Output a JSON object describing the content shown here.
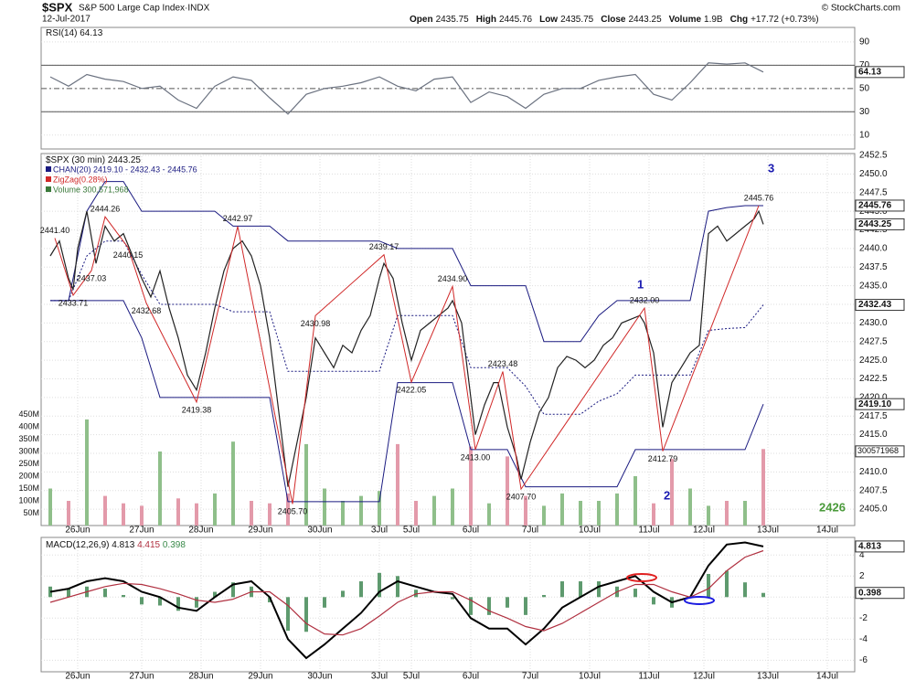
{
  "header": {
    "symbol": "$SPX",
    "name": "S&P 500 Large Cap Index·INDX",
    "date": "12-Jul-2017",
    "quote": [
      {
        "label": "Open",
        "value": "2435.75"
      },
      {
        "label": "High",
        "value": "2445.76"
      },
      {
        "label": "Low",
        "value": "2435.75"
      },
      {
        "label": "Close",
        "value": "2443.25"
      },
      {
        "label": "Volume",
        "value": "1.9B"
      },
      {
        "label": "Chg",
        "value": "+17.72 (+0.73%)"
      }
    ],
    "copyright": "© StockCharts.com"
  },
  "chart_data": [
    {
      "type": "line",
      "xlim": [
        -2,
        176
      ],
      "ylim": [
        -2,
        102.5
      ],
      "yticks": [
        10,
        30,
        50,
        70,
        90
      ],
      "bands": [
        30,
        70
      ],
      "midline": 50,
      "x": [
        0,
        4,
        8,
        12,
        16,
        20,
        24,
        28,
        32,
        36,
        40,
        44,
        48,
        52,
        56,
        60,
        64,
        68,
        72,
        76,
        80,
        84,
        88,
        92,
        96,
        100,
        104,
        108,
        112,
        116,
        120,
        124,
        128,
        132,
        136,
        140,
        144,
        148,
        152,
        156
      ],
      "series": [
        {
          "name": "RSI(14)",
          "color": "#6b7280",
          "values": [
            60,
            52,
            62,
            58,
            56,
            50,
            52,
            40,
            33,
            52,
            60,
            57,
            42,
            28,
            45,
            50,
            52,
            55,
            60,
            52,
            48,
            58,
            60,
            38,
            47,
            43,
            33,
            45,
            50,
            50,
            57,
            60,
            62,
            45,
            40,
            55,
            72,
            71,
            72,
            64.13
          ]
        }
      ],
      "tags": [
        64.13
      ]
    },
    {
      "type": "line",
      "xlim": [
        -2,
        176
      ],
      "ylim": [
        2402.8,
        2452.75
      ],
      "yticks": [
        {
          "value": 2405,
          "label": "2405.0"
        },
        2407.5,
        {
          "value": 2410,
          "label": "2410.0"
        },
        2412.5,
        {
          "value": 2415,
          "label": "2415.0"
        },
        2417.5,
        {
          "value": 2420,
          "label": "2420.0"
        },
        2422.5,
        {
          "value": 2425,
          "label": "2425.0"
        },
        2427.5,
        {
          "value": 2430,
          "label": "2430.0"
        },
        2432.5,
        {
          "value": 2435,
          "label": "2435.0"
        },
        2437.5,
        {
          "value": 2440,
          "label": "2440.0"
        },
        2442.5,
        {
          "value": 2445,
          "label": "2445.0"
        },
        2447.5,
        {
          "value": 2450,
          "label": "2450.0"
        },
        2452.5
      ],
      "xticks": [
        {
          "value": 6,
          "label": "26Jun"
        },
        {
          "value": 20,
          "label": "27Jun"
        },
        {
          "value": 33,
          "label": "28Jun"
        },
        {
          "value": 46,
          "label": "29Jun"
        },
        {
          "value": 59,
          "label": "30Jun"
        },
        {
          "value": 72,
          "label": "3Jul"
        },
        {
          "value": 79,
          "label": "5Jul"
        },
        {
          "value": 92,
          "label": "6Jul"
        },
        {
          "value": 105,
          "label": "7Jul"
        },
        {
          "value": 118,
          "label": "10Jul"
        },
        {
          "value": 131,
          "label": "11Jul"
        },
        {
          "value": 143,
          "label": "12Jul"
        },
        {
          "value": 157,
          "label": "13Jul"
        },
        {
          "value": 170,
          "label": "14Jul"
        }
      ],
      "x": [
        0,
        2,
        4,
        5,
        6,
        8,
        10,
        12,
        14,
        16,
        18,
        20,
        22,
        24,
        26,
        28,
        30,
        32,
        34,
        36,
        38,
        40,
        42,
        44,
        46,
        48,
        50,
        52,
        54,
        56,
        58,
        60,
        62,
        64,
        66,
        68,
        70,
        72,
        73,
        75,
        77,
        79,
        81,
        83,
        85,
        87,
        88,
        90,
        92,
        93,
        95,
        97,
        98,
        100,
        102,
        103,
        105,
        107,
        109,
        111,
        113,
        115,
        117,
        119,
        121,
        123,
        125,
        127,
        129,
        130,
        132,
        134,
        136,
        138,
        140,
        142,
        144,
        146,
        148,
        150,
        152,
        154,
        155,
        156
      ],
      "series": [
        {
          "name": "$SPX (30 min)",
          "color": "#222222",
          "values": [
            2439,
            2441,
            2436,
            2434.5,
            2440,
            2445,
            2438,
            2443,
            2441,
            2442,
            2439,
            2436,
            2433.5,
            2437,
            2432,
            2428,
            2423,
            2421,
            2426,
            2432,
            2437,
            2440,
            2441,
            2439,
            2435,
            2428,
            2418,
            2408,
            2414,
            2420,
            2428,
            2426,
            2424,
            2427,
            2426,
            2429,
            2431,
            2436,
            2438,
            2436,
            2430,
            2425,
            2429,
            2430,
            2431,
            2432,
            2433,
            2430,
            2420,
            2415,
            2419,
            2422,
            2422,
            2416,
            2412,
            2409,
            2414,
            2418,
            2420,
            2424,
            2425.5,
            2425,
            2424,
            2425,
            2427,
            2428,
            2430,
            2430.5,
            2431,
            2430,
            2426,
            2416,
            2422,
            2424,
            2426,
            2427,
            2442,
            2443,
            2441,
            2442,
            2443,
            2444,
            2445,
            2443.25
          ]
        }
      ],
      "channel": {
        "name": "CHAN(20) 2419.10 - 2432.43 - 2445.76",
        "color": "#1a1a80",
        "x": [
          0,
          4,
          8,
          12,
          16,
          20,
          24,
          28,
          32,
          36,
          40,
          44,
          48,
          52,
          56,
          60,
          64,
          68,
          72,
          76,
          80,
          84,
          88,
          92,
          96,
          100,
          104,
          108,
          112,
          116,
          120,
          124,
          128,
          132,
          136,
          140,
          144,
          148,
          152,
          156
        ],
        "upper": [
          2433,
          2433,
          2445,
          2449,
          2449,
          2445,
          2445,
          2445,
          2445,
          2445,
          2443,
          2443,
          2443,
          2441,
          2441,
          2441,
          2441,
          2441,
          2441,
          2440,
          2440,
          2440,
          2440,
          2435,
          2435,
          2435,
          2435,
          2427.5,
          2427.5,
          2427.5,
          2431,
          2433,
          2433,
          2433,
          2433,
          2433,
          2445,
          2445.5,
          2445.76,
          2445.76
        ],
        "middle": [
          2433,
          2433,
          2439,
          2441,
          2441,
          2436.5,
          2432.5,
          2432.5,
          2432.5,
          2432.5,
          2431.5,
          2431.5,
          2431.5,
          2423.5,
          2423.5,
          2423.5,
          2423.5,
          2423.5,
          2423.5,
          2431,
          2431,
          2431,
          2431,
          2424,
          2424,
          2424,
          2421.5,
          2417.75,
          2417.75,
          2417.75,
          2419.5,
          2420.5,
          2423,
          2423,
          2423,
          2423,
          2429,
          2429.25,
          2429.38,
          2432.43
        ],
        "lower": [
          2433,
          2433,
          2433,
          2433,
          2433,
          2428,
          2420,
          2420,
          2420,
          2420,
          2420,
          2420,
          2420,
          2406,
          2406,
          2406,
          2406,
          2406,
          2406,
          2422,
          2422,
          2422,
          2422,
          2413,
          2413,
          2413,
          2408,
          2408,
          2408,
          2408,
          2408,
          2408,
          2413,
          2413,
          2413,
          2413,
          2413,
          2413,
          2413,
          2419.1
        ]
      },
      "zigzag": {
        "name": "ZigZag(0.28%)",
        "color": "#d02828",
        "x": [
          1,
          5,
          9,
          12,
          17,
          21,
          32,
          41,
          53,
          58,
          73,
          79,
          88,
          93,
          99,
          103,
          130,
          134,
          155
        ],
        "values": [
          2441.4,
          2433.71,
          2437.03,
          2444.26,
          2440.15,
          2432.68,
          2419.38,
          2442.97,
          2405.7,
          2430.98,
          2439.17,
          2422.05,
          2434.9,
          2413,
          2423.48,
          2407.7,
          2432,
          2412.79,
          2445.76
        ],
        "value_labels": [
          "2441.40",
          "2433.71",
          "2437.03",
          "2444.26",
          "2440.15",
          "2432.68",
          "2419.38",
          "2442.97",
          "2405.70",
          "2430.98",
          "2439.17",
          "2422.05",
          "2434.90",
          "2413.00",
          "2423.48",
          "2407.70",
          "2432.00",
          "2412.79",
          "2445.76"
        ]
      },
      "volume": {
        "name": "Volume 300,571,968",
        "up_color": "#8fbf8a",
        "down_color": "#e39aaa",
        "ylim": [
          0,
          500
        ],
        "yticks": [
          {
            "value": 50,
            "label": "50M"
          },
          {
            "value": 100,
            "label": "100M"
          },
          {
            "value": 150,
            "label": "150M"
          },
          {
            "value": 200,
            "label": "200M"
          },
          {
            "value": 250,
            "label": "250M"
          },
          {
            "value": 300,
            "label": "300M"
          },
          {
            "value": 350,
            "label": "350M"
          },
          {
            "value": 400,
            "label": "400M"
          },
          {
            "value": 450,
            "label": "450M"
          }
        ],
        "x": [
          0,
          4,
          8,
          12,
          16,
          20,
          24,
          28,
          32,
          36,
          40,
          44,
          48,
          52,
          56,
          60,
          64,
          68,
          72,
          76,
          80,
          84,
          88,
          92,
          96,
          100,
          104,
          108,
          112,
          116,
          120,
          124,
          128,
          132,
          136,
          140,
          144,
          148,
          152,
          156
        ],
        "values": [
          150,
          100,
          430,
          120,
          90,
          80,
          300,
          110,
          90,
          130,
          340,
          100,
          90,
          130,
          330,
          150,
          100,
          120,
          140,
          330,
          100,
          120,
          150,
          320,
          90,
          280,
          120,
          80,
          130,
          100,
          100,
          130,
          200,
          90,
          270,
          150,
          80,
          100,
          100,
          310
        ],
        "tags": [
          {
            "value": 300.571968,
            "label": "300571968"
          }
        ]
      },
      "tags": [
        {
          "value": 2445.76,
          "label": "2445.76"
        },
        {
          "value": 2443.25,
          "label": "2443.25"
        },
        {
          "value": 2432.43,
          "label": "2432.43"
        },
        {
          "value": 2419.1,
          "label": "2419.10"
        }
      ],
      "annotations": [
        "1",
        "2",
        "3",
        "2426"
      ]
    },
    {
      "type": "line",
      "xlim": [
        -2,
        176
      ],
      "ylim": [
        -7.1,
        5.5
      ],
      "yticks": [
        -6,
        -4,
        -2,
        0,
        2,
        4
      ],
      "xticks": [
        {
          "value": 6,
          "label": "26Jun"
        },
        {
          "value": 20,
          "label": "27Jun"
        },
        {
          "value": 33,
          "label": "28Jun"
        },
        {
          "value": 46,
          "label": "29Jun"
        },
        {
          "value": 59,
          "label": "30Jun"
        },
        {
          "value": 72,
          "label": "3Jul"
        },
        {
          "value": 79,
          "label": "5Jul"
        },
        {
          "value": 92,
          "label": "6Jul"
        },
        {
          "value": 105,
          "label": "7Jul"
        },
        {
          "value": 118,
          "label": "10Jul"
        },
        {
          "value": 131,
          "label": "11Jul"
        },
        {
          "value": 143,
          "label": "12Jul"
        },
        {
          "value": 157,
          "label": "13Jul"
        },
        {
          "value": 170,
          "label": "14Jul"
        }
      ],
      "x": [
        0,
        4,
        8,
        12,
        16,
        20,
        24,
        28,
        32,
        36,
        40,
        44,
        48,
        52,
        56,
        60,
        64,
        68,
        72,
        76,
        80,
        84,
        88,
        92,
        96,
        100,
        104,
        108,
        112,
        116,
        120,
        124,
        128,
        132,
        136,
        140,
        144,
        148,
        152,
        156
      ],
      "series": [
        {
          "type": "bar",
          "color": "#5e9a6e",
          "values": [
            1.0,
            0.8,
            1.0,
            0.8,
            0.2,
            -0.7,
            -0.8,
            -1.3,
            -1.0,
            0.5,
            1.4,
            1.0,
            -0.5,
            -3.2,
            -3.3,
            -1.0,
            0.6,
            1.5,
            2.3,
            2.0,
            0.7,
            0,
            -0.2,
            -1.7,
            -1.7,
            -1.0,
            -1.7,
            0.2,
            1.5,
            1.5,
            1.5,
            1.0,
            0.8,
            -0.7,
            -1.0,
            0,
            2.2,
            2.5,
            1.4,
            0.398
          ]
        },
        {
          "name": "MACD(12,26,9)",
          "color": "#000000",
          "values": [
            0.5,
            0.8,
            1.5,
            1.8,
            1.5,
            0.5,
            0,
            -1,
            -1.3,
            0,
            1.2,
            1.5,
            0,
            -4,
            -5.8,
            -4.5,
            -3,
            -1.5,
            0.5,
            1.5,
            1,
            0.5,
            0.3,
            -2,
            -3,
            -3,
            -4.5,
            -3,
            -1,
            0,
            1,
            1.5,
            2,
            0.5,
            -0.5,
            0,
            3,
            5,
            5.2,
            4.813
          ]
        },
        {
          "color": "#b03040",
          "values": [
            -0.5,
            0,
            0.5,
            1,
            1.3,
            1.2,
            0.8,
            0.3,
            -0.3,
            -0.5,
            -0.2,
            0.5,
            0.5,
            -0.8,
            -2.5,
            -3.5,
            -3.6,
            -3,
            -1.8,
            -0.5,
            0.3,
            0.5,
            0.5,
            -0.3,
            -1.3,
            -2,
            -2.8,
            -3.2,
            -2.5,
            -1.5,
            -0.5,
            0.5,
            1.2,
            1.2,
            0.5,
            0,
            0.8,
            2.5,
            3.8,
            4.415
          ]
        }
      ],
      "tags": [
        4.813,
        0.398
      ]
    }
  ]
}
